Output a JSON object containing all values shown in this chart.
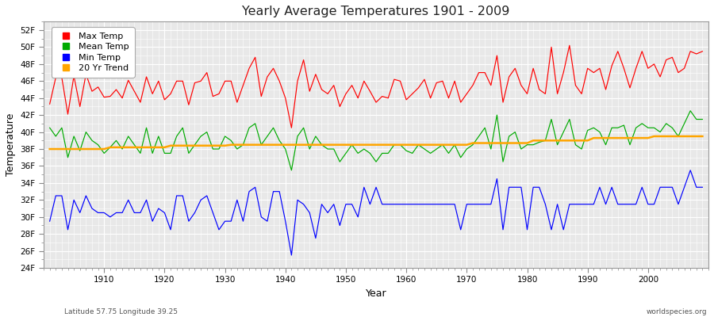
{
  "title": "Yearly Average Temperatures 1901 - 2009",
  "xlabel": "Year",
  "ylabel": "Temperature",
  "start_year": 1901,
  "end_year": 2009,
  "ylim": [
    24,
    53
  ],
  "yticks": [
    24,
    26,
    28,
    30,
    32,
    34,
    36,
    38,
    40,
    42,
    44,
    46,
    48,
    50,
    52
  ],
  "xticks": [
    1910,
    1920,
    1930,
    1940,
    1950,
    1960,
    1970,
    1980,
    1990,
    2000
  ],
  "colors": {
    "max": "#ff0000",
    "mean": "#00aa00",
    "min": "#0000ff",
    "trend": "#ffa500"
  },
  "legend_labels": [
    "Max Temp",
    "Mean Temp",
    "Min Temp",
    "20 Yr Trend"
  ],
  "fig_bg": "#ffffff",
  "plot_bg": "#e8e8e8",
  "grid_color": "#ffffff",
  "footer_left": "Latitude 57.75 Longitude 39.25",
  "footer_right": "worldspecies.org",
  "max_temps": [
    43.3,
    46.4,
    46.4,
    42.1,
    46.6,
    43.0,
    46.8,
    44.8,
    45.3,
    44.1,
    44.2,
    45.0,
    44.0,
    46.1,
    44.8,
    43.5,
    46.5,
    44.5,
    46.0,
    43.8,
    44.5,
    46.0,
    46.0,
    43.2,
    45.8,
    46.0,
    47.0,
    44.2,
    44.5,
    46.0,
    46.0,
    43.5,
    45.5,
    47.5,
    48.8,
    44.2,
    46.5,
    47.5,
    46.0,
    44.0,
    40.5,
    46.0,
    48.5,
    44.8,
    46.8,
    45.0,
    44.5,
    45.5,
    43.0,
    44.5,
    45.5,
    44.0,
    46.0,
    44.8,
    43.5,
    44.2,
    44.0,
    46.2,
    46.0,
    43.8,
    44.5,
    45.2,
    46.2,
    44.0,
    45.8,
    46.0,
    44.0,
    46.0,
    43.5,
    44.5,
    45.5,
    47.0,
    47.0,
    45.5,
    49.0,
    43.5,
    46.5,
    47.5,
    45.5,
    44.5,
    47.5,
    45.0,
    44.5,
    50.0,
    44.5,
    47.0,
    50.2,
    45.5,
    44.5,
    47.5,
    47.0,
    47.5,
    45.0,
    47.8,
    49.5,
    47.5,
    45.2,
    47.5,
    49.5,
    47.5,
    48.0,
    46.5,
    48.5,
    48.8,
    47.0,
    47.5,
    49.5,
    49.2,
    49.5
  ],
  "mean_temps": [
    40.5,
    39.5,
    40.5,
    37.0,
    39.5,
    37.8,
    40.0,
    39.0,
    38.5,
    37.5,
    38.2,
    39.0,
    38.0,
    39.5,
    38.5,
    37.5,
    40.5,
    37.5,
    39.5,
    37.5,
    37.5,
    39.5,
    40.5,
    37.5,
    38.5,
    39.5,
    40.0,
    38.0,
    38.0,
    39.5,
    39.0,
    38.0,
    38.5,
    40.5,
    41.0,
    38.5,
    39.5,
    40.5,
    39.0,
    38.0,
    35.5,
    39.5,
    40.5,
    38.0,
    39.5,
    38.5,
    38.0,
    38.0,
    36.5,
    37.5,
    38.5,
    37.5,
    38.0,
    37.5,
    36.5,
    37.5,
    37.5,
    38.5,
    38.5,
    37.8,
    37.5,
    38.5,
    38.0,
    37.5,
    38.0,
    38.5,
    37.5,
    38.5,
    37.0,
    38.0,
    38.5,
    39.5,
    40.5,
    38.0,
    42.0,
    36.5,
    39.5,
    40.0,
    38.0,
    38.5,
    38.5,
    38.8,
    39.0,
    41.5,
    38.5,
    40.0,
    41.5,
    38.5,
    38.0,
    40.2,
    40.5,
    40.0,
    38.5,
    40.5,
    40.5,
    40.8,
    38.5,
    40.5,
    41.0,
    40.5,
    40.5,
    40.0,
    41.0,
    40.5,
    39.5,
    41.0,
    42.5,
    41.5,
    41.5
  ],
  "min_temps": [
    29.5,
    32.5,
    32.5,
    28.5,
    32.0,
    30.5,
    32.5,
    31.0,
    30.5,
    30.5,
    30.0,
    30.5,
    30.5,
    32.0,
    30.5,
    30.5,
    32.0,
    29.5,
    31.0,
    30.5,
    28.5,
    32.5,
    32.5,
    29.5,
    30.5,
    32.0,
    32.5,
    30.5,
    28.5,
    29.5,
    29.5,
    32.0,
    29.5,
    33.0,
    33.5,
    30.0,
    29.5,
    33.0,
    33.0,
    29.5,
    25.5,
    32.0,
    31.5,
    30.5,
    27.5,
    31.5,
    30.5,
    31.5,
    29.0,
    31.5,
    31.5,
    30.0,
    33.5,
    31.5,
    33.5,
    31.5,
    31.5,
    31.5,
    31.5,
    31.5,
    31.5,
    31.5,
    31.5,
    31.5,
    31.5,
    31.5,
    31.5,
    31.5,
    28.5,
    31.5,
    31.5,
    31.5,
    31.5,
    31.5,
    34.5,
    28.5,
    33.5,
    33.5,
    33.5,
    28.5,
    33.5,
    33.5,
    31.5,
    28.5,
    31.5,
    28.5,
    31.5,
    31.5,
    31.5,
    31.5,
    31.5,
    33.5,
    31.5,
    33.5,
    31.5,
    31.5,
    31.5,
    31.5,
    33.5,
    31.5,
    31.5,
    33.5,
    33.5,
    33.5,
    31.5,
    33.5,
    35.5,
    33.5,
    33.5
  ],
  "trend_temps": [
    38.0,
    38.0,
    38.0,
    38.0,
    38.0,
    38.0,
    38.0,
    38.0,
    38.0,
    38.0,
    38.2,
    38.2,
    38.2,
    38.2,
    38.2,
    38.2,
    38.2,
    38.2,
    38.2,
    38.2,
    38.4,
    38.4,
    38.4,
    38.4,
    38.4,
    38.4,
    38.4,
    38.4,
    38.4,
    38.4,
    38.5,
    38.5,
    38.5,
    38.5,
    38.5,
    38.5,
    38.5,
    38.5,
    38.5,
    38.5,
    38.5,
    38.5,
    38.5,
    38.5,
    38.5,
    38.5,
    38.5,
    38.5,
    38.5,
    38.5,
    38.5,
    38.5,
    38.5,
    38.5,
    38.5,
    38.5,
    38.5,
    38.5,
    38.5,
    38.5,
    38.5,
    38.5,
    38.5,
    38.5,
    38.5,
    38.5,
    38.5,
    38.5,
    38.5,
    38.5,
    38.7,
    38.7,
    38.7,
    38.7,
    38.7,
    38.7,
    38.7,
    38.7,
    38.7,
    38.7,
    39.0,
    39.0,
    39.0,
    39.0,
    39.0,
    39.0,
    39.0,
    39.0,
    39.0,
    39.0,
    39.3,
    39.3,
    39.3,
    39.3,
    39.3,
    39.3,
    39.3,
    39.3,
    39.3,
    39.3,
    39.5,
    39.5,
    39.5,
    39.5,
    39.5,
    39.5,
    39.5,
    39.5,
    39.5
  ]
}
